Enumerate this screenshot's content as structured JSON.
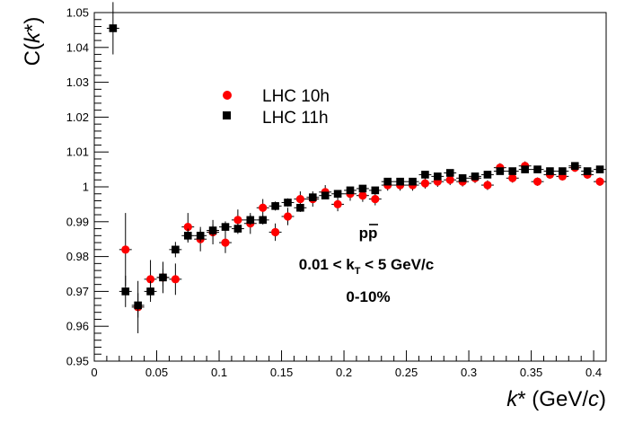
{
  "chart_data": {
    "type": "scatter",
    "title": "",
    "xlabel": "k* (GeV/c)",
    "ylabel": "C(k*)",
    "xlim": [
      0,
      0.41
    ],
    "ylim": [
      0.95,
      1.05
    ],
    "grid": false,
    "legend_position": "upper-left",
    "x_ticks": [
      0,
      0.05,
      0.1,
      0.15,
      0.2,
      0.25,
      0.3,
      0.35,
      0.4
    ],
    "x_tick_labels": [
      "0",
      "0.05",
      "0.1",
      "0.15",
      "0.2",
      "0.25",
      "0.3",
      "0.35",
      "0.4"
    ],
    "y_ticks": [
      0.95,
      0.96,
      0.97,
      0.98,
      0.99,
      1.0,
      1.01,
      1.02,
      1.03,
      1.04,
      1.05
    ],
    "y_tick_labels": [
      "0.95",
      "0.96",
      "0.97",
      "0.98",
      "0.99",
      "1",
      "1.01",
      "1.02",
      "1.03",
      "1.04",
      "1.05"
    ],
    "annotations": [
      "pp̅",
      "0.01 < kT < 5 GeV/c",
      "0-10%"
    ],
    "series": [
      {
        "name": "LHC 10h",
        "marker": "circle",
        "color": "#ff0000",
        "x": [
          0.025,
          0.035,
          0.045,
          0.055,
          0.065,
          0.075,
          0.085,
          0.095,
          0.105,
          0.115,
          0.125,
          0.135,
          0.145,
          0.155,
          0.165,
          0.175,
          0.185,
          0.195,
          0.205,
          0.215,
          0.225,
          0.235,
          0.245,
          0.255,
          0.265,
          0.275,
          0.285,
          0.295,
          0.305,
          0.315,
          0.325,
          0.335,
          0.345,
          0.355,
          0.365,
          0.375,
          0.385,
          0.395,
          0.405
        ],
        "y": [
          0.982,
          0.9655,
          0.9735,
          0.974,
          0.9735,
          0.9885,
          0.985,
          0.987,
          0.984,
          0.9905,
          0.9895,
          0.994,
          0.987,
          0.9915,
          0.9965,
          0.9965,
          0.9985,
          0.995,
          0.998,
          0.9975,
          0.9965,
          1.0005,
          1.0005,
          1.0005,
          1.001,
          1.0015,
          1.002,
          1.0015,
          1.0025,
          1.0005,
          1.0055,
          1.0025,
          1.006,
          1.0015,
          1.0035,
          1.003,
          1.0055,
          1.0035,
          1.0015
        ],
        "err": [
          0.0105,
          0.0075,
          0.0055,
          0.0045,
          0.0045,
          0.004,
          0.0035,
          0.0035,
          0.003,
          0.003,
          0.003,
          0.0025,
          0.0025,
          0.0025,
          0.0022,
          0.0022,
          0.002,
          0.002,
          0.002,
          0.0018,
          0.0018,
          0.0016,
          0.0016,
          0.0016,
          0.0015,
          0.0015,
          0.0015,
          0.0014,
          0.0014,
          0.0014,
          0.0013,
          0.0013,
          0.0013,
          0.0012,
          0.0012,
          0.0012,
          0.0012,
          0.0012,
          0.0012
        ]
      },
      {
        "name": "LHC 11h",
        "marker": "square",
        "color": "#000000",
        "x": [
          0.015,
          0.025,
          0.035,
          0.045,
          0.055,
          0.065,
          0.075,
          0.085,
          0.095,
          0.105,
          0.115,
          0.125,
          0.135,
          0.145,
          0.155,
          0.165,
          0.175,
          0.185,
          0.195,
          0.205,
          0.215,
          0.225,
          0.235,
          0.245,
          0.255,
          0.265,
          0.275,
          0.285,
          0.295,
          0.305,
          0.315,
          0.325,
          0.335,
          0.345,
          0.355,
          0.365,
          0.375,
          0.385,
          0.395,
          0.405
        ],
        "y": [
          1.0455,
          0.97,
          0.966,
          0.97,
          0.974,
          0.982,
          0.986,
          0.986,
          0.9875,
          0.9885,
          0.988,
          0.9905,
          0.9905,
          0.9945,
          0.9955,
          0.994,
          0.997,
          0.9975,
          0.998,
          0.999,
          0.9995,
          0.999,
          1.0015,
          1.0015,
          1.0015,
          1.0035,
          1.003,
          1.004,
          1.0025,
          1.003,
          1.0035,
          1.0045,
          1.0045,
          1.005,
          1.005,
          1.0045,
          1.0045,
          1.006,
          1.0045,
          1.005
        ],
        "err": [
          0.0075,
          0.0045,
          0.0035,
          0.003,
          0.0025,
          0.0022,
          0.002,
          0.0018,
          0.0017,
          0.0016,
          0.0015,
          0.0014,
          0.0013,
          0.0013,
          0.0012,
          0.0012,
          0.0011,
          0.0011,
          0.001,
          0.001,
          0.001,
          0.001,
          0.0009,
          0.0009,
          0.0009,
          0.0009,
          0.0009,
          0.0008,
          0.0008,
          0.0008,
          0.0008,
          0.0008,
          0.0008,
          0.0008,
          0.0008,
          0.0008,
          0.0008,
          0.0008,
          0.0008,
          0.0008
        ]
      }
    ]
  },
  "labels": {
    "ylabel_main": "C(",
    "ylabel_var": "k",
    "ylabel_star_close": "*)",
    "xlabel_var": "k",
    "xlabel_rest": "* (GeV/",
    "xlabel_c": "c",
    "xlabel_close": ")",
    "annotation_particle": "p",
    "annotation_antiparticle": "p",
    "annotation_kt_prefix": "0.01 < k",
    "annotation_kt_sub": "T",
    "annotation_kt_suffix": " < 5 GeV/c",
    "annotation_centrality": "0-10%"
  }
}
